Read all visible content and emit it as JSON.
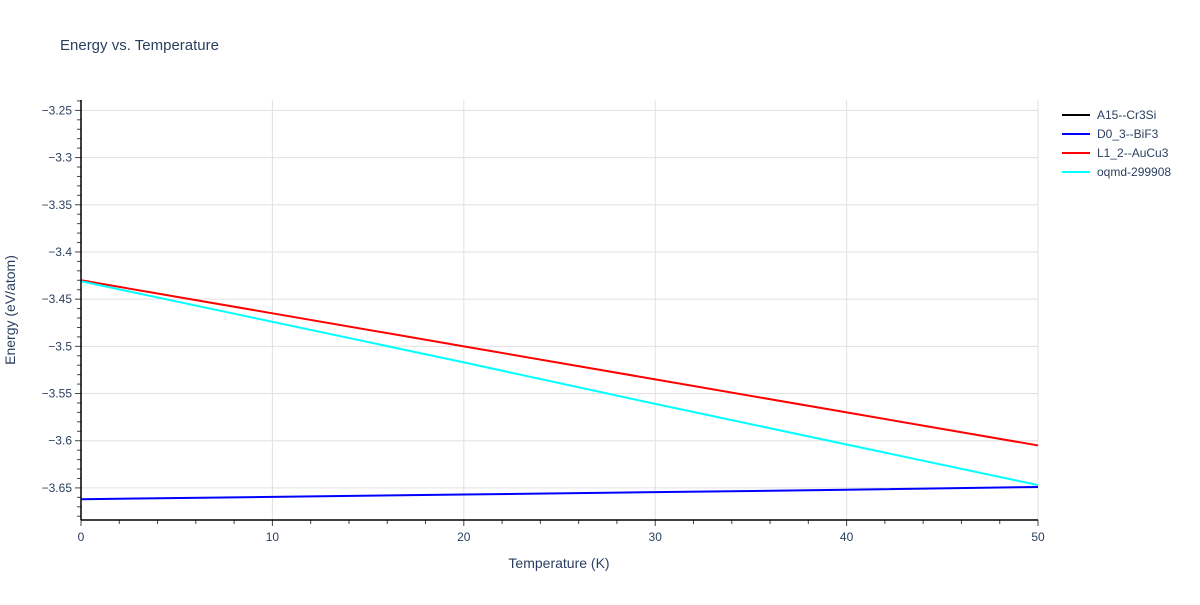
{
  "chart_data": {
    "type": "line",
    "title": "Energy vs. Temperature",
    "xlabel": "Temperature (K)",
    "ylabel": "Energy (eV/atom)",
    "xlim": [
      0,
      50
    ],
    "ylim": [
      -3.684,
      -3.239
    ],
    "xticks": [
      0,
      10,
      20,
      30,
      40,
      50
    ],
    "xtick_labels": [
      "0",
      "10",
      "20",
      "30",
      "40",
      "50"
    ],
    "yticks": [
      -3.25,
      -3.3,
      -3.35,
      -3.4,
      -3.45,
      -3.5,
      -3.55,
      -3.6,
      -3.65
    ],
    "ytick_labels": [
      "−3.25",
      "−3.3",
      "−3.35",
      "−3.4",
      "−3.45",
      "−3.5",
      "−3.55",
      "−3.6",
      "−3.65"
    ],
    "grid": true,
    "legend_position": "top-right",
    "series": [
      {
        "name": "A15--Cr3Si",
        "color": "#000000",
        "x": [],
        "y": []
      },
      {
        "name": "D0_3--BiF3",
        "color": "#0000ff",
        "x": [
          0,
          10,
          20,
          30,
          40,
          50
        ],
        "y": [
          -3.662,
          -3.6595,
          -3.657,
          -3.6545,
          -3.652,
          -3.649
        ]
      },
      {
        "name": "L1_2--AuCu3",
        "color": "#ff0000",
        "x": [
          0,
          10,
          20,
          30,
          40,
          50
        ],
        "y": [
          -3.43,
          -3.465,
          -3.5,
          -3.535,
          -3.57,
          -3.605
        ]
      },
      {
        "name": "oqmd-299908",
        "color": "#00ffff",
        "x": [
          0,
          10,
          20,
          30,
          40,
          50
        ],
        "y": [
          -3.431,
          -3.474,
          -3.517,
          -3.561,
          -3.604,
          -3.647
        ]
      }
    ]
  }
}
